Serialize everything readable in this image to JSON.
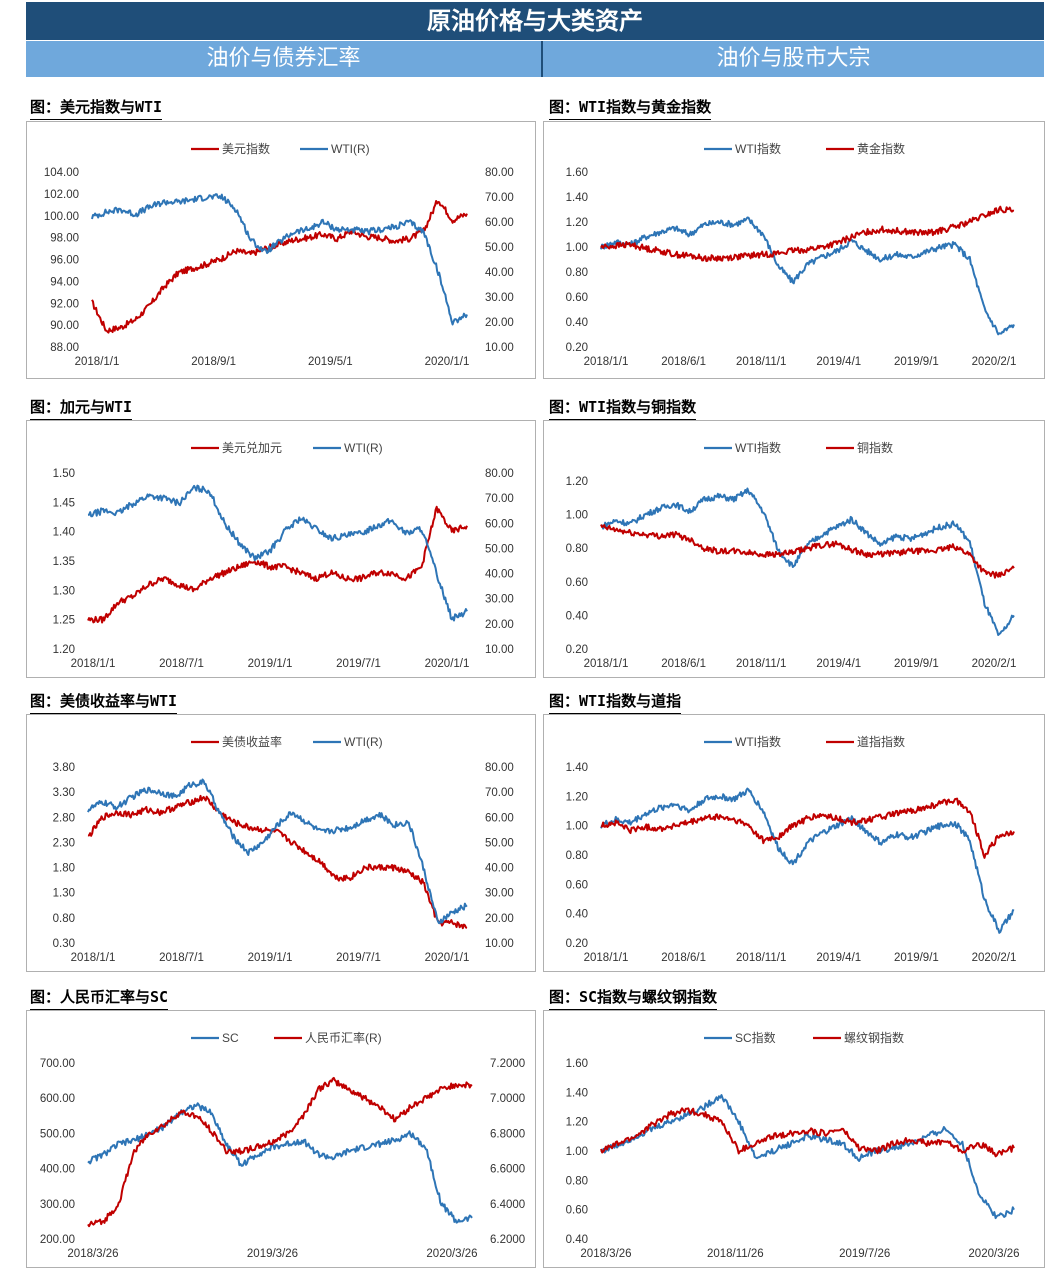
{
  "header": {
    "title": "原油价格与大类资产",
    "left_section": "油价与债券汇率",
    "right_section": "油价与股市大宗"
  },
  "colors": {
    "red": "#c00000",
    "blue": "#2e75b6",
    "banner": "#1f4e79",
    "subbanner": "#6fa8dc"
  },
  "panels": [
    {
      "title": "图：美元指数与WTI",
      "chart_data": {
        "type": "line",
        "legend": [
          "美元指数",
          "WTI(R)"
        ],
        "yticks_left": [
          "104.00",
          "102.00",
          "100.00",
          "98.00",
          "96.00",
          "94.00",
          "92.00",
          "90.00",
          "88.00"
        ],
        "yticks_right": [
          "80.00",
          "70.00",
          "60.00",
          "50.00",
          "40.00",
          "30.00",
          "20.00",
          "10.00"
        ],
        "xticks": [
          "2018/1/1",
          "2018/9/1",
          "2019/5/1",
          "2020/1/1"
        ],
        "ylim_left": [
          88,
          104
        ],
        "ylim_right": [
          10,
          80
        ],
        "series": [
          {
            "name": "美元指数",
            "axis": "left",
            "values": [
              92.1,
              89.5,
              89.8,
              90.5,
              91.8,
              93.5,
              94.8,
              95.2,
              95.6,
              96.1,
              96.8,
              96.5,
              97.0,
              97.4,
              97.8,
              98.0,
              98.3,
              97.9,
              98.6,
              98.1,
              98.0,
              97.7,
              97.9,
              98.6,
              101.5,
              99.6,
              100.2
            ]
          },
          {
            "name": "WTI(R)",
            "axis": "right",
            "values": [
              62,
              64,
              65,
              63,
              66,
              68,
              68,
              69,
              70,
              70,
              65,
              53,
              48,
              52,
              56,
              57,
              60,
              57,
              57,
              56,
              57,
              58,
              60,
              56,
              40,
              20,
              23
            ]
          }
        ]
      }
    },
    {
      "title": "图：WTI指数与黄金指数",
      "chart_data": {
        "type": "line",
        "legend": [
          "WTI指数",
          "黄金指数"
        ],
        "yticks_left": [
          "1.60",
          "1.40",
          "1.20",
          "1.00",
          "0.80",
          "0.60",
          "0.40",
          "0.20"
        ],
        "xticks": [
          "2018/1/1",
          "2018/6/1",
          "2018/11/1",
          "2019/4/1",
          "2019/9/1",
          "2020/2/1"
        ],
        "ylim_left": [
          0.2,
          1.6
        ],
        "series": [
          {
            "name": "WTI指数",
            "axis": "left",
            "values": [
              1.0,
              1.04,
              1.02,
              1.08,
              1.12,
              1.15,
              1.1,
              1.18,
              1.2,
              1.18,
              1.22,
              1.1,
              0.85,
              0.72,
              0.86,
              0.92,
              0.97,
              1.05,
              0.97,
              0.9,
              0.94,
              0.92,
              0.96,
              1.0,
              1.02,
              0.9,
              0.5,
              0.3,
              0.38
            ]
          },
          {
            "name": "黄金指数",
            "axis": "left",
            "values": [
              1.0,
              1.01,
              1.02,
              0.99,
              0.97,
              0.94,
              0.93,
              0.91,
              0.91,
              0.92,
              0.93,
              0.94,
              0.95,
              0.97,
              0.98,
              1.0,
              1.03,
              1.08,
              1.12,
              1.14,
              1.13,
              1.12,
              1.11,
              1.13,
              1.16,
              1.2,
              1.25,
              1.3,
              1.29
            ]
          }
        ]
      }
    },
    {
      "title": "图：加元与WTI",
      "chart_data": {
        "type": "line",
        "legend": [
          "美元兑加元",
          "WTI(R)"
        ],
        "yticks_left": [
          "1.50",
          "1.45",
          "1.40",
          "1.35",
          "1.30",
          "1.25",
          "1.20"
        ],
        "yticks_right": [
          "80.00",
          "70.00",
          "60.00",
          "50.00",
          "40.00",
          "30.00",
          "20.00",
          "10.00"
        ],
        "xticks": [
          "2018/1/1",
          "2018/7/1",
          "2019/1/1",
          "2019/7/1",
          "2020/1/1"
        ],
        "ylim_left": [
          1.2,
          1.5
        ],
        "ylim_right": [
          10,
          80
        ],
        "series": [
          {
            "name": "美元兑加元",
            "axis": "left",
            "values": [
              1.25,
              1.25,
              1.28,
              1.29,
              1.31,
              1.32,
              1.31,
              1.3,
              1.32,
              1.33,
              1.34,
              1.35,
              1.34,
              1.34,
              1.33,
              1.32,
              1.33,
              1.32,
              1.32,
              1.33,
              1.33,
              1.32,
              1.34,
              1.44,
              1.4,
              1.41
            ]
          },
          {
            "name": "WTI(R)",
            "axis": "right",
            "values": [
              63,
              65,
              64,
              68,
              71,
              70,
              68,
              74,
              73,
              60,
              52,
              46,
              49,
              57,
              62,
              58,
              54,
              55,
              56,
              59,
              61,
              56,
              58,
              40,
              22,
              25
            ]
          }
        ]
      }
    },
    {
      "title": "图：WTI指数与铜指数",
      "chart_data": {
        "type": "line",
        "legend": [
          "WTI指数",
          "铜指数"
        ],
        "yticks_left": [
          "1.20",
          "1.00",
          "0.80",
          "0.60",
          "0.40",
          "0.20"
        ],
        "xticks": [
          "2018/1/1",
          "2018/6/1",
          "2018/11/1",
          "2019/4/1",
          "2019/9/1",
          "2020/2/1"
        ],
        "ylim_left": [
          0.2,
          1.3
        ],
        "series": [
          {
            "name": "WTI指数",
            "axis": "left",
            "values": [
              1.0,
              1.04,
              1.02,
              1.08,
              1.12,
              1.15,
              1.1,
              1.18,
              1.2,
              1.18,
              1.24,
              1.1,
              0.85,
              0.74,
              0.88,
              0.95,
              1.0,
              1.05,
              0.96,
              0.88,
              0.94,
              0.92,
              0.96,
              1.0,
              1.02,
              0.9,
              0.5,
              0.28,
              0.42
            ]
          },
          {
            "name": "铜指数",
            "axis": "left",
            "values": [
              1.0,
              0.98,
              0.96,
              0.95,
              0.94,
              0.95,
              0.92,
              0.86,
              0.84,
              0.84,
              0.83,
              0.82,
              0.82,
              0.83,
              0.86,
              0.88,
              0.89,
              0.85,
              0.82,
              0.82,
              0.83,
              0.84,
              0.84,
              0.85,
              0.87,
              0.82,
              0.7,
              0.68,
              0.73
            ]
          }
        ]
      }
    },
    {
      "title": "图：美债收益率与WTI",
      "chart_data": {
        "type": "line",
        "legend": [
          "美债收益率",
          "WTI(R)"
        ],
        "yticks_left": [
          "3.80",
          "3.30",
          "2.80",
          "2.30",
          "1.80",
          "1.30",
          "0.80",
          "0.30"
        ],
        "yticks_right": [
          "80.00",
          "70.00",
          "60.00",
          "50.00",
          "40.00",
          "30.00",
          "20.00",
          "10.00"
        ],
        "xticks": [
          "2018/1/1",
          "2018/7/1",
          "2019/1/1",
          "2019/7/1",
          "2020/1/1"
        ],
        "ylim_left": [
          0.3,
          3.8
        ],
        "ylim_right": [
          10,
          80
        ],
        "series": [
          {
            "name": "美债收益率",
            "axis": "left",
            "values": [
              2.4,
              2.8,
              2.9,
              2.85,
              2.95,
              2.9,
              3.0,
              3.1,
              3.2,
              2.9,
              2.7,
              2.6,
              2.55,
              2.5,
              2.3,
              2.1,
              1.9,
              1.6,
              1.6,
              1.8,
              1.8,
              1.8,
              1.7,
              1.5,
              0.7,
              0.7,
              0.6
            ]
          },
          {
            "name": "WTI(R)",
            "axis": "right",
            "values": [
              63,
              66,
              64,
              68,
              71,
              70,
              68,
              73,
              74,
              62,
              52,
              46,
              50,
              57,
              62,
              58,
              54,
              55,
              56,
              59,
              61,
              57,
              58,
              40,
              18,
              22,
              25
            ]
          }
        ]
      }
    },
    {
      "title": "图：WTI指数与道指",
      "chart_data": {
        "type": "line",
        "legend": [
          "WTI指数",
          "道指指数"
        ],
        "yticks_left": [
          "1.40",
          "1.20",
          "1.00",
          "0.80",
          "0.60",
          "0.40",
          "0.20"
        ],
        "xticks": [
          "2018/1/1",
          "2018/6/1",
          "2018/11/1",
          "2019/4/1",
          "2019/9/1",
          "2020/2/1"
        ],
        "ylim_left": [
          0.2,
          1.4
        ],
        "series": [
          {
            "name": "WTI指数",
            "axis": "left",
            "values": [
              1.0,
              1.04,
              1.02,
              1.08,
              1.12,
              1.15,
              1.1,
              1.18,
              1.2,
              1.18,
              1.24,
              1.1,
              0.85,
              0.74,
              0.88,
              0.95,
              1.0,
              1.05,
              0.96,
              0.88,
              0.94,
              0.92,
              0.96,
              1.0,
              1.02,
              0.9,
              0.5,
              0.28,
              0.42
            ]
          },
          {
            "name": "道指指数",
            "axis": "left",
            "values": [
              1.0,
              1.02,
              0.97,
              0.99,
              0.98,
              1.0,
              1.02,
              1.05,
              1.06,
              1.04,
              1.0,
              0.9,
              0.92,
              1.0,
              1.05,
              1.07,
              1.05,
              1.02,
              1.04,
              1.06,
              1.08,
              1.1,
              1.12,
              1.15,
              1.18,
              1.1,
              0.8,
              0.93,
              0.96
            ]
          }
        ]
      }
    },
    {
      "title": "图：人民币汇率与SC",
      "chart_data": {
        "type": "line",
        "legend": [
          "SC",
          "人民币汇率(R)"
        ],
        "yticks_left": [
          "700.00",
          "600.00",
          "500.00",
          "400.00",
          "300.00",
          "200.00"
        ],
        "yticks_right": [
          "7.2000",
          "7.0000",
          "6.8000",
          "6.6000",
          "6.4000",
          "6.2000"
        ],
        "xticks": [
          "2018/3/26",
          "2019/3/26",
          "2020/3/26"
        ],
        "ylim_left": [
          200,
          700
        ],
        "ylim_right": [
          6.2,
          7.2
        ],
        "series": [
          {
            "name": "SC",
            "axis": "left",
            "values": [
              420,
              440,
              470,
              480,
              500,
              520,
              560,
              580,
              560,
              470,
              410,
              440,
              460,
              470,
              480,
              440,
              430,
              450,
              460,
              470,
              480,
              500,
              460,
              300,
              250,
              260
            ]
          },
          {
            "name": "人民币汇率(R)",
            "axis": "right",
            "values": [
              6.28,
              6.3,
              6.4,
              6.7,
              6.8,
              6.85,
              6.92,
              6.9,
              6.82,
              6.7,
              6.7,
              6.72,
              6.75,
              6.8,
              6.9,
              7.05,
              7.1,
              7.05,
              7.0,
              6.95,
              6.88,
              6.95,
              7.0,
              7.05,
              7.08,
              7.07
            ]
          }
        ]
      }
    },
    {
      "title": "图：SC指数与螺纹钢指数",
      "chart_data": {
        "type": "line",
        "legend": [
          "SC指数",
          "螺纹钢指数"
        ],
        "yticks_left": [
          "1.60",
          "1.40",
          "1.20",
          "1.00",
          "0.80",
          "0.60",
          "0.40"
        ],
        "xticks": [
          "2018/3/26",
          "2018/11/26",
          "2019/7/26",
          "2020/3/26"
        ],
        "ylim_left": [
          0.4,
          1.6
        ],
        "series": [
          {
            "name": "SC指数",
            "axis": "left",
            "values": [
              1.0,
              1.04,
              1.1,
              1.15,
              1.2,
              1.25,
              1.3,
              1.38,
              1.2,
              0.95,
              1.0,
              1.05,
              1.1,
              1.08,
              1.05,
              0.95,
              1.0,
              1.02,
              1.05,
              1.1,
              1.15,
              1.05,
              0.7,
              0.55,
              0.6
            ]
          },
          {
            "name": "螺纹钢指数",
            "axis": "left",
            "values": [
              1.0,
              1.05,
              1.1,
              1.18,
              1.25,
              1.28,
              1.25,
              1.2,
              1.0,
              1.05,
              1.1,
              1.12,
              1.14,
              1.12,
              1.15,
              1.02,
              1.0,
              1.05,
              1.08,
              1.05,
              1.07,
              1.0,
              1.05,
              0.98,
              1.02
            ]
          }
        ]
      }
    }
  ]
}
